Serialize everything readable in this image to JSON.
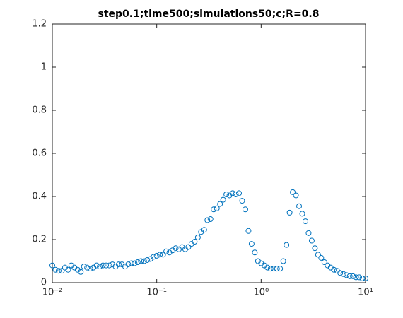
{
  "chart_data": {
    "type": "scatter",
    "title": "step0.1;time500;simulations50;c;R=0.8",
    "x": [
      0.01,
      0.01072,
      0.0115,
      0.01233,
      0.01322,
      0.01418,
      0.0152,
      0.0163,
      0.01748,
      0.01874,
      0.02009,
      0.02154,
      0.0231,
      0.02477,
      0.02656,
      0.02848,
      0.03054,
      0.03275,
      0.03511,
      0.03765,
      0.04037,
      0.04329,
      0.04642,
      0.04977,
      0.05337,
      0.05722,
      0.06136,
      0.06579,
      0.07055,
      0.07565,
      0.08111,
      0.08697,
      0.09326,
      0.1,
      0.1072,
      0.115,
      0.1233,
      0.1322,
      0.1418,
      0.152,
      0.163,
      0.1748,
      0.1874,
      0.2009,
      0.2154,
      0.231,
      0.2477,
      0.2656,
      0.2848,
      0.3054,
      0.3275,
      0.3511,
      0.3765,
      0.4037,
      0.4329,
      0.4642,
      0.4977,
      0.5337,
      0.5722,
      0.6136,
      0.6579,
      0.7055,
      0.7565,
      0.8111,
      0.8697,
      0.9326,
      1,
      1.072,
      1.15,
      1.233,
      1.322,
      1.418,
      1.52,
      1.63,
      1.748,
      1.874,
      2.009,
      2.154,
      2.31,
      2.477,
      2.656,
      2.848,
      3.054,
      3.275,
      3.511,
      3.765,
      4.037,
      4.329,
      4.642,
      4.977,
      5.337,
      5.722,
      6.136,
      6.579,
      7.055,
      7.565,
      8.111,
      8.697,
      9.326,
      10
    ],
    "series": [
      {
        "color": "#0072bd",
        "values": [
          0.08,
          0.06,
          0.055,
          0.055,
          0.07,
          0.06,
          0.08,
          0.07,
          0.06,
          0.05,
          0.075,
          0.07,
          0.065,
          0.07,
          0.08,
          0.075,
          0.08,
          0.08,
          0.08,
          0.085,
          0.075,
          0.085,
          0.085,
          0.075,
          0.085,
          0.09,
          0.09,
          0.095,
          0.1,
          0.1,
          0.105,
          0.11,
          0.12,
          0.125,
          0.13,
          0.13,
          0.145,
          0.14,
          0.15,
          0.16,
          0.155,
          0.165,
          0.155,
          0.165,
          0.18,
          0.19,
          0.21,
          0.235,
          0.245,
          0.29,
          0.295,
          0.34,
          0.345,
          0.365,
          0.385,
          0.41,
          0.405,
          0.415,
          0.41,
          0.415,
          0.38,
          0.34,
          0.24,
          0.18,
          0.14,
          0.1,
          0.09,
          0.08,
          0.07,
          0.065,
          0.065,
          0.065,
          0.065,
          0.1,
          0.175,
          0.325,
          0.42,
          0.405,
          0.355,
          0.32,
          0.285,
          0.23,
          0.195,
          0.16,
          0.13,
          0.115,
          0.095,
          0.08,
          0.07,
          0.06,
          0.055,
          0.045,
          0.04,
          0.035,
          0.03,
          0.03,
          0.025,
          0.025,
          0.02,
          0.02
        ]
      }
    ],
    "xscale": "log",
    "xlim": [
      0.01,
      10
    ],
    "xticks": [
      {
        "value": 0.01,
        "label": "10⁻²"
      },
      {
        "value": 0.1,
        "label": "10⁻¹"
      },
      {
        "value": 1,
        "label": "10⁰"
      },
      {
        "value": 10,
        "label": "10¹"
      }
    ],
    "ylim": [
      0,
      1.2
    ],
    "yticks": [
      0,
      0.2,
      0.4,
      0.6,
      0.8,
      1,
      1.2
    ]
  }
}
